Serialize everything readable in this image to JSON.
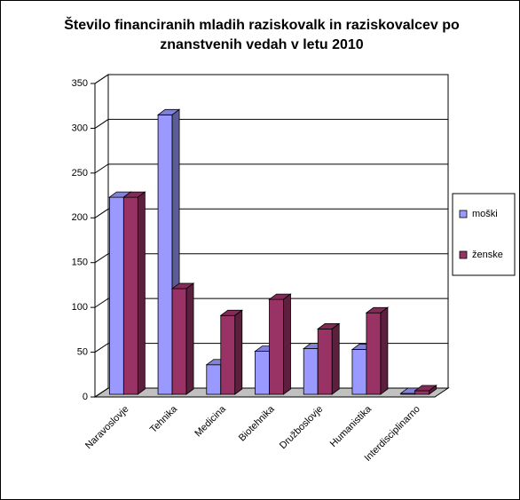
{
  "chart_data": {
    "type": "bar3d",
    "title": "Število financiranih mladih raziskovalk in raziskovalcev po znanstvenih vedah v letu 2010",
    "categories": [
      "Naravoslovje",
      "Tehnika",
      "Medicina",
      "Biotehnika",
      "Družboslovje",
      "Humanistika",
      "Interdisciplinarno"
    ],
    "series": [
      {
        "name": "moški",
        "color": "#9999ff",
        "values": [
          220,
          312,
          33,
          48,
          51,
          50,
          1
        ]
      },
      {
        "name": "ženske",
        "color": "#993366",
        "values": [
          220,
          118,
          88,
          106,
          73,
          91,
          4
        ]
      }
    ],
    "ylim": [
      0,
      350
    ],
    "yticks": [
      0,
      50,
      100,
      150,
      200,
      250,
      300,
      350
    ],
    "grid": true,
    "legend": "right"
  }
}
